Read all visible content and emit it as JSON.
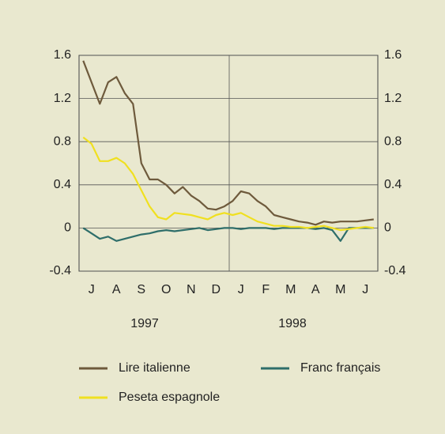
{
  "chart_data": {
    "type": "line",
    "categories": [
      null,
      "J",
      null,
      null,
      "A",
      null,
      null,
      "S",
      null,
      null,
      "O",
      null,
      null,
      "N",
      null,
      null,
      "D",
      null,
      null,
      "J",
      null,
      null,
      "F",
      null,
      null,
      "M",
      null,
      null,
      "A",
      null,
      null,
      "M",
      null,
      null,
      "J",
      null
    ],
    "annotations": [
      "1997",
      "1998"
    ],
    "series": [
      {
        "name": "Lire italienne",
        "color": "#6e5a3c",
        "values": [
          1.55,
          1.35,
          1.15,
          1.35,
          1.4,
          1.25,
          1.15,
          0.6,
          0.45,
          0.45,
          0.4,
          0.32,
          0.38,
          0.3,
          0.25,
          0.18,
          0.17,
          0.2,
          0.25,
          0.34,
          0.32,
          0.25,
          0.2,
          0.12,
          0.1,
          0.08,
          0.06,
          0.05,
          0.03,
          0.06,
          0.05,
          0.06,
          0.06,
          0.06,
          0.07,
          0.08
        ]
      },
      {
        "name": "Franc français",
        "color": "#2e6e6a",
        "values": [
          0.0,
          -0.05,
          -0.1,
          -0.08,
          -0.12,
          -0.1,
          -0.08,
          -0.06,
          -0.05,
          -0.03,
          -0.02,
          -0.03,
          -0.02,
          -0.01,
          0.0,
          -0.02,
          -0.01,
          0.0,
          0.0,
          -0.01,
          0.0,
          0.0,
          0.0,
          -0.01,
          0.0,
          0.0,
          0.0,
          0.0,
          -0.01,
          0.0,
          -0.02,
          -0.12,
          0.0,
          0.0,
          0.0,
          0.0
        ]
      },
      {
        "name": "Peseta espagnole",
        "color": "#f0e020",
        "values": [
          0.84,
          0.78,
          0.62,
          0.62,
          0.65,
          0.6,
          0.5,
          0.35,
          0.2,
          0.1,
          0.08,
          0.14,
          0.13,
          0.12,
          0.1,
          0.08,
          0.12,
          0.14,
          0.12,
          0.14,
          0.1,
          0.06,
          0.04,
          0.02,
          0.02,
          0.01,
          0.01,
          0.0,
          0.01,
          0.02,
          0.0,
          -0.02,
          -0.01,
          0.0,
          0.01,
          0.0
        ]
      }
    ],
    "ylim": [
      -0.4,
      1.6
    ],
    "yticks": [
      {
        "value": -0.4,
        "label": "-0.4"
      },
      0,
      0.4,
      0.8,
      1.2,
      1.6
    ],
    "grid": true
  }
}
